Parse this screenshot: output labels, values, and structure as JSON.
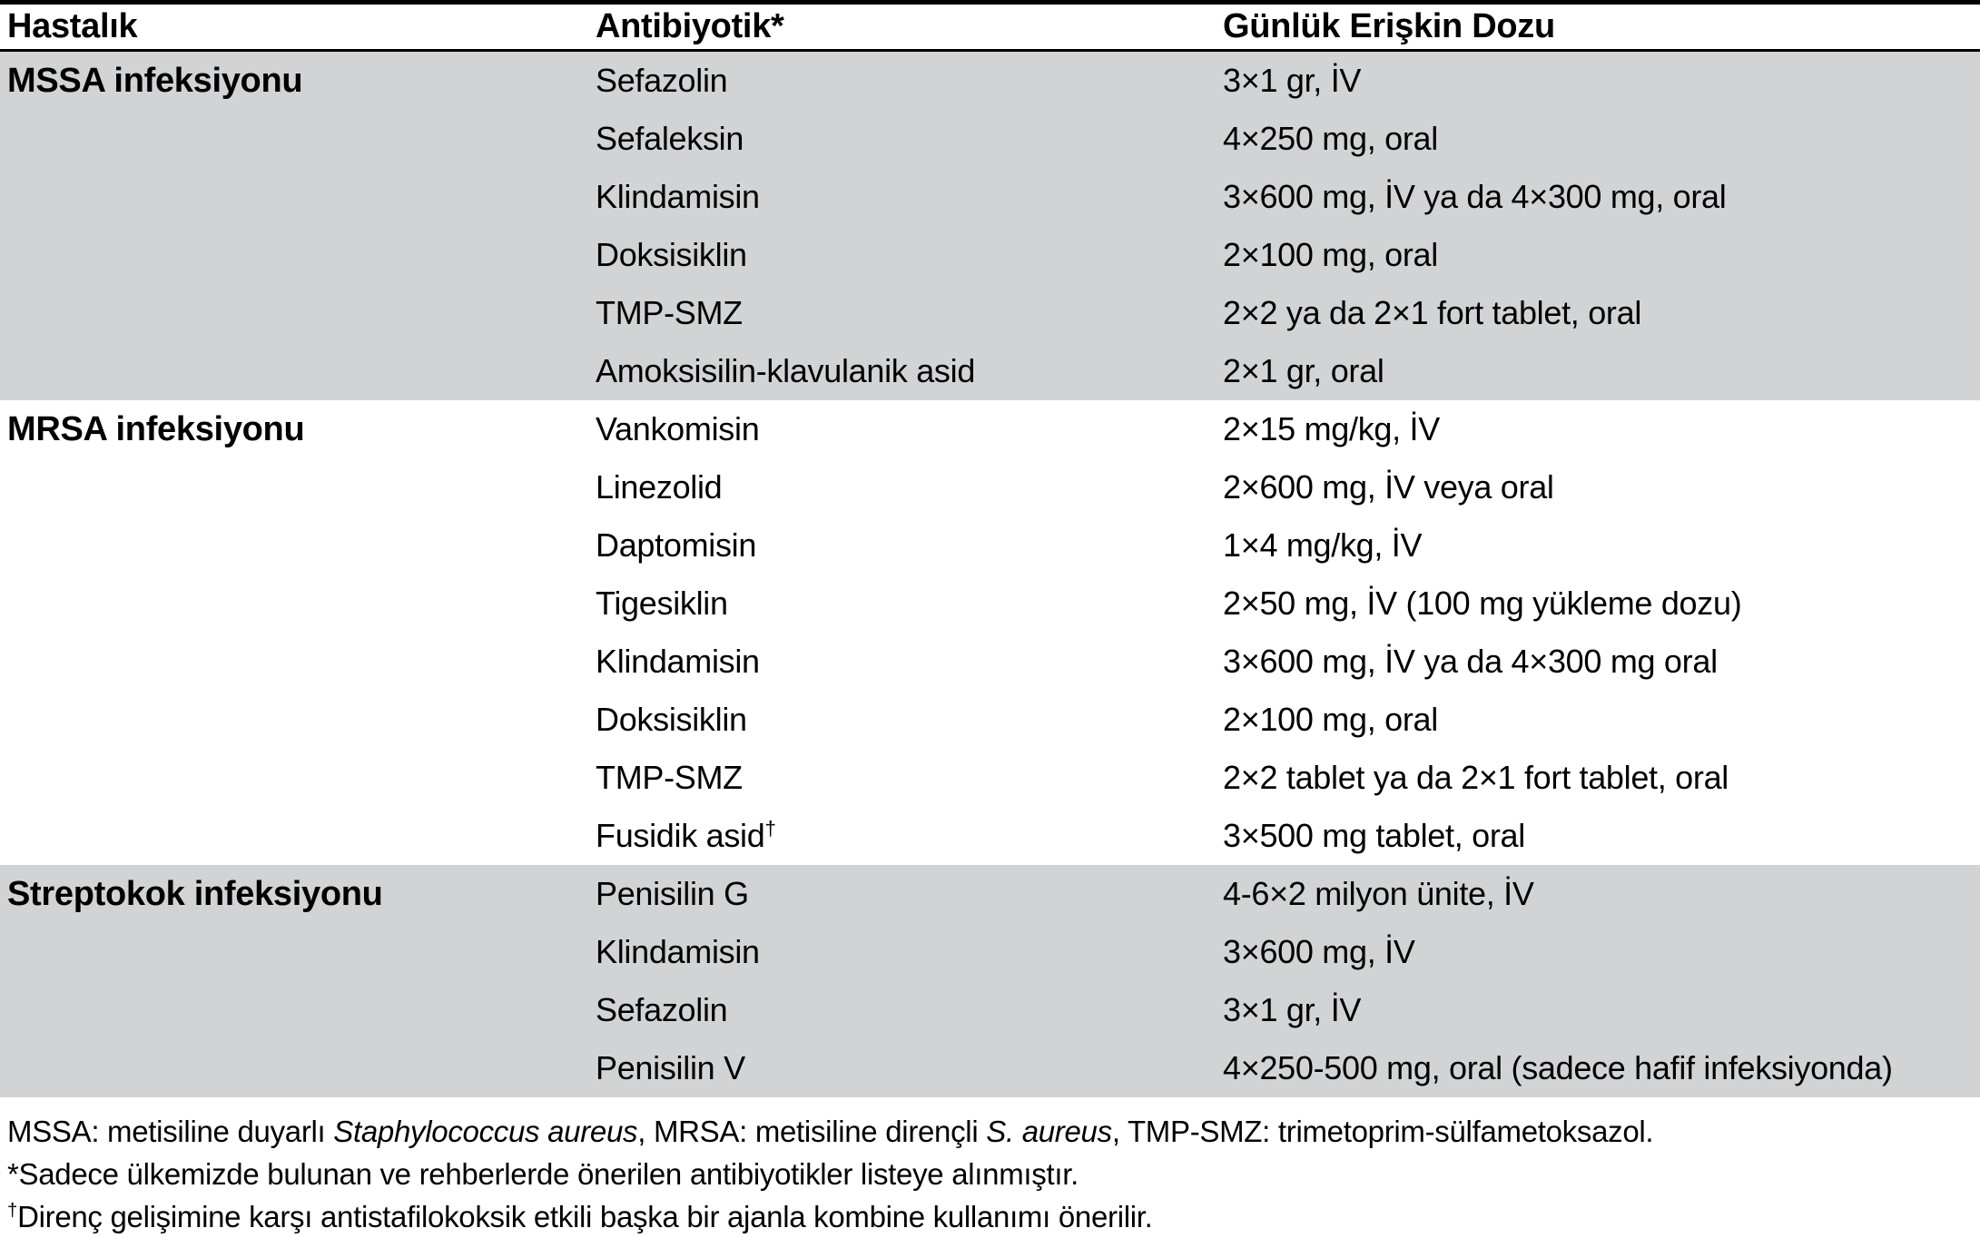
{
  "table": {
    "columns": [
      {
        "label": "Hastalık"
      },
      {
        "label": "Antibiyotik*"
      },
      {
        "label": "Günlük Erişkin Dozu"
      }
    ],
    "sections": [
      {
        "disease": "MSSA infeksiyonu",
        "shaded": true,
        "rows": [
          {
            "antibiotic": "Sefazolin",
            "dose": "3×1 gr, İV"
          },
          {
            "antibiotic": "Sefaleksin",
            "dose": "4×250 mg, oral"
          },
          {
            "antibiotic": "Klindamisin",
            "dose": "3×600 mg, İV ya da 4×300 mg, oral"
          },
          {
            "antibiotic": "Doksisiklin",
            "dose": "2×100 mg, oral"
          },
          {
            "antibiotic": "TMP-SMZ",
            "dose": "2×2 ya da 2×1 fort tablet, oral"
          },
          {
            "antibiotic": "Amoksisilin-klavulanik asid",
            "dose": "2×1 gr, oral"
          }
        ]
      },
      {
        "disease": "MRSA infeksiyonu",
        "shaded": false,
        "rows": [
          {
            "antibiotic": "Vankomisin",
            "dose": "2×15 mg/kg, İV"
          },
          {
            "antibiotic": "Linezolid",
            "dose": "2×600 mg, İV veya oral"
          },
          {
            "antibiotic": "Daptomisin",
            "dose": "1×4 mg/kg, İV"
          },
          {
            "antibiotic": "Tigesiklin",
            "dose": "2×50 mg, İV (100 mg yükleme dozu)"
          },
          {
            "antibiotic": "Klindamisin",
            "dose": "3×600 mg, İV ya da 4×300 mg oral"
          },
          {
            "antibiotic": "Doksisiklin",
            "dose": "2×100 mg, oral"
          },
          {
            "antibiotic": "TMP-SMZ",
            "dose": "2×2 tablet ya da 2×1 fort tablet, oral"
          },
          {
            "antibiotic": "Fusidik asid",
            "antibiotic_sup": "†",
            "dose": "3×500 mg tablet, oral"
          }
        ]
      },
      {
        "disease": "Streptokok infeksiyonu",
        "shaded": true,
        "rows": [
          {
            "antibiotic": "Penisilin G",
            "dose": "4-6×2 milyon ünite, İV"
          },
          {
            "antibiotic": "Klindamisin",
            "dose": "3×600 mg, İV"
          },
          {
            "antibiotic": "Sefazolin",
            "dose": "3×1 gr, İV"
          },
          {
            "antibiotic": "Penisilin V",
            "dose": "4×250-500 mg, oral (sadece hafif infeksiyonda)"
          }
        ]
      }
    ]
  },
  "footnotes": [
    {
      "parts": [
        {
          "text": "MSSA: metisiline duyarlı ",
          "style": "normal"
        },
        {
          "text": "Staphylococcus aureus",
          "style": "italic"
        },
        {
          "text": ", MRSA: metisiline dirençli ",
          "style": "normal"
        },
        {
          "text": "S. aureus",
          "style": "italic"
        },
        {
          "text": ", TMP-SMZ: trimetoprim-sülfametoksazol.",
          "style": "normal"
        }
      ]
    },
    {
      "parts": [
        {
          "text": "*Sadece ülkemizde bulunan ve rehberlerde önerilen antibiyotikler listeye alınmıştır.",
          "style": "normal"
        }
      ]
    },
    {
      "parts": [
        {
          "text": "†",
          "style": "sup"
        },
        {
          "text": "Direnç gelişimine karşı antistafilokoksik etkili başka bir ajanla kombine kullanımı önerilir.",
          "style": "normal"
        }
      ]
    }
  ],
  "colors": {
    "shaded_row_bg": "#d2d3d4",
    "border": "#000000",
    "text": "#000000"
  }
}
